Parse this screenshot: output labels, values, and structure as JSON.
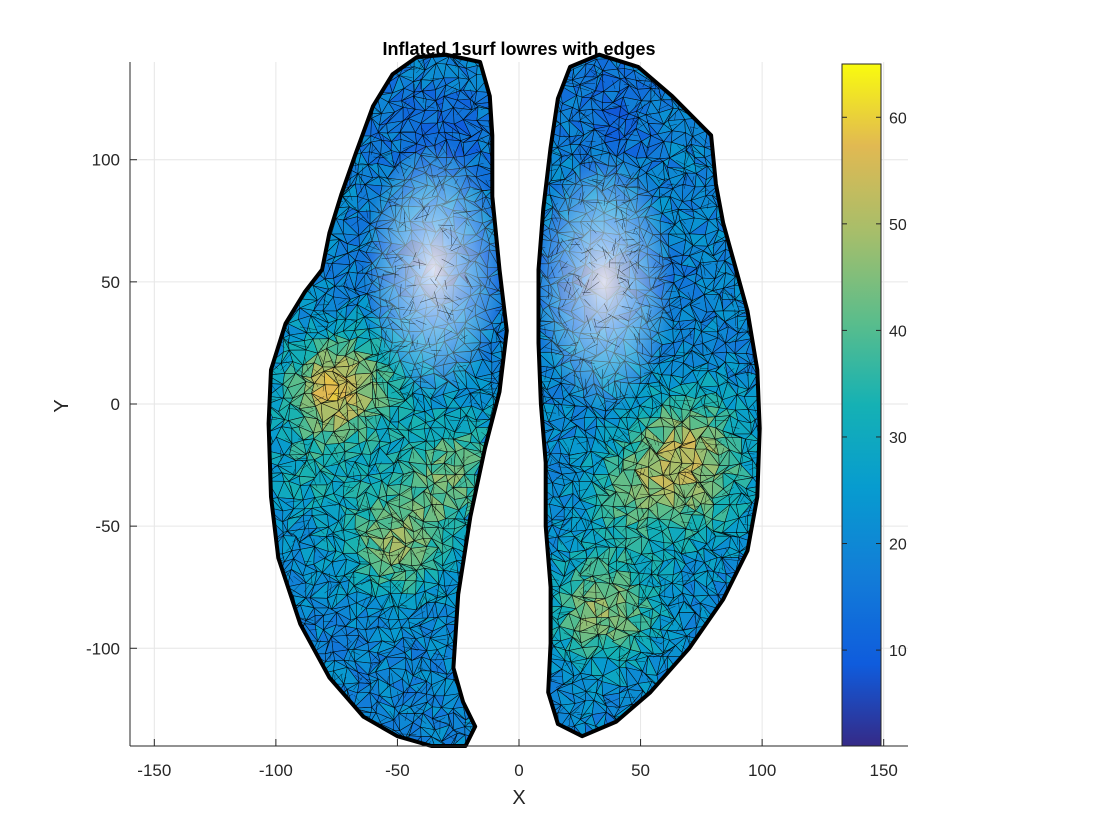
{
  "chart_data": {
    "type": "surface-mesh",
    "title": "Inflated 1surf lowres with edges",
    "xlabel": "X",
    "ylabel": "Y",
    "xlim": [
      -160,
      160
    ],
    "ylim": [
      -140,
      140
    ],
    "xticks": [
      -150,
      -100,
      -50,
      0,
      50,
      100,
      150
    ],
    "yticks": [
      -100,
      -50,
      0,
      50,
      100
    ],
    "grid": true,
    "colormap": "parula",
    "colorbar": {
      "location": "right",
      "clim": [
        1,
        65
      ],
      "ticks": [
        10,
        20,
        30,
        40,
        50,
        60
      ]
    },
    "edge_color": "#000000",
    "surfaces": [
      {
        "name_hint": "left",
        "outline": [
          [
            -30,
            143
          ],
          [
            -16,
            140
          ],
          [
            -12,
            126
          ],
          [
            -11,
            110
          ],
          [
            -11,
            85
          ],
          [
            -8,
            55
          ],
          [
            -5,
            30
          ],
          [
            -8,
            5
          ],
          [
            -14,
            -18
          ],
          [
            -20,
            -46
          ],
          [
            -25,
            -78
          ],
          [
            -27,
            -108
          ],
          [
            -23,
            -122
          ],
          [
            -18,
            -132
          ],
          [
            -22,
            -140
          ],
          [
            -36,
            -140
          ],
          [
            -50,
            -136
          ],
          [
            -64,
            -128
          ],
          [
            -78,
            -112
          ],
          [
            -90,
            -90
          ],
          [
            -99,
            -63
          ],
          [
            -102,
            -38
          ],
          [
            -103,
            -8
          ],
          [
            -102,
            14
          ],
          [
            -96,
            33
          ],
          [
            -88,
            46
          ],
          [
            -81,
            55
          ],
          [
            -78,
            70
          ],
          [
            -73,
            86
          ],
          [
            -67,
            103
          ],
          [
            -60,
            122
          ],
          [
            -52,
            135
          ],
          [
            -42,
            142
          ]
        ],
        "hotspots": [
          {
            "x": -74,
            "y": 7,
            "value": 55
          },
          {
            "x": -50,
            "y": -57,
            "value": 45
          },
          {
            "x": -27,
            "y": -26,
            "value": 42
          },
          {
            "x": -85,
            "y": -28,
            "value": 30
          },
          {
            "x": -60,
            "y": 120,
            "value": 18
          }
        ],
        "lowspots": [
          {
            "x": -35,
            "y": 55,
            "value": 3
          },
          {
            "x": -30,
            "y": 110,
            "value": 12
          }
        ]
      },
      {
        "name_hint": "right",
        "outline": [
          [
            33,
            143
          ],
          [
            49,
            138
          ],
          [
            63,
            126
          ],
          [
            79,
            110
          ],
          [
            81,
            90
          ],
          [
            84,
            74
          ],
          [
            89,
            56
          ],
          [
            94,
            38
          ],
          [
            98,
            14
          ],
          [
            99,
            -10
          ],
          [
            98,
            -38
          ],
          [
            94,
            -60
          ],
          [
            84,
            -80
          ],
          [
            70,
            -100
          ],
          [
            54,
            -118
          ],
          [
            40,
            -130
          ],
          [
            26,
            -136
          ],
          [
            16,
            -131
          ],
          [
            12,
            -118
          ],
          [
            13,
            -98
          ],
          [
            13,
            -75
          ],
          [
            11,
            -50
          ],
          [
            11,
            -24
          ],
          [
            9,
            0
          ],
          [
            8,
            25
          ],
          [
            8,
            55
          ],
          [
            10,
            80
          ],
          [
            13,
            105
          ],
          [
            16,
            125
          ],
          [
            21,
            138
          ]
        ],
        "hotspots": [
          {
            "x": 70,
            "y": -15,
            "value": 45
          },
          {
            "x": 50,
            "y": -37,
            "value": 40
          },
          {
            "x": 35,
            "y": -84,
            "value": 47
          },
          {
            "x": 80,
            "y": -40,
            "value": 30
          },
          {
            "x": 72,
            "y": 120,
            "value": 22
          }
        ],
        "lowspots": [
          {
            "x": 35,
            "y": 50,
            "value": 3
          },
          {
            "x": 40,
            "y": 118,
            "value": 12
          }
        ]
      }
    ]
  }
}
